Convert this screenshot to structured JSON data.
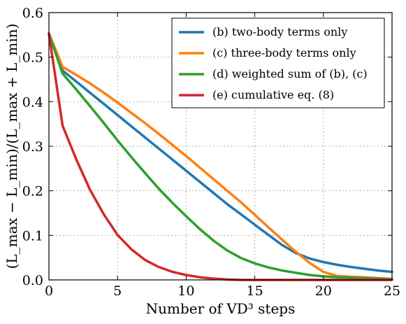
{
  "chart_data": {
    "type": "line",
    "xlabel": "Number of VD³ steps",
    "ylabel": "(L_max − L_min)/(L_max + L_min)",
    "xlim": [
      0,
      25
    ],
    "ylim": [
      0,
      0.6
    ],
    "xticks": [
      "0",
      "5",
      "10",
      "15",
      "20",
      "25"
    ],
    "yticks": [
      "0.0",
      "0.1",
      "0.2",
      "0.3",
      "0.4",
      "0.5",
      "0.6"
    ],
    "grid": true,
    "legend_position": "top-right",
    "x": [
      0,
      1,
      2,
      3,
      4,
      5,
      6,
      7,
      8,
      9,
      10,
      11,
      12,
      13,
      14,
      15,
      16,
      17,
      18,
      19,
      20,
      21,
      22,
      23,
      24,
      25
    ],
    "series": [
      {
        "name": "(b)   two-body terms only",
        "color": "#1f77b4",
        "values": [
          0.553,
          0.47,
          0.445,
          0.42,
          0.395,
          0.37,
          0.345,
          0.32,
          0.295,
          0.27,
          0.245,
          0.22,
          0.195,
          0.17,
          0.147,
          0.124,
          0.101,
          0.078,
          0.06,
          0.048,
          0.04,
          0.034,
          0.029,
          0.025,
          0.021,
          0.018
        ]
      },
      {
        "name": "(c)   three-body terms only",
        "color": "#ff7f0e",
        "values": [
          0.553,
          0.478,
          0.46,
          0.441,
          0.42,
          0.398,
          0.375,
          0.352,
          0.328,
          0.303,
          0.278,
          0.252,
          0.226,
          0.2,
          0.174,
          0.146,
          0.118,
          0.09,
          0.063,
          0.038,
          0.018,
          0.009,
          0.007,
          0.006,
          0.004,
          0.002
        ]
      },
      {
        "name": "(d)   weighted sum of (b), (c)",
        "color": "#2ca02c",
        "values": [
          0.553,
          0.463,
          0.427,
          0.39,
          0.352,
          0.313,
          0.276,
          0.24,
          0.205,
          0.173,
          0.143,
          0.114,
          0.088,
          0.066,
          0.049,
          0.037,
          0.028,
          0.021,
          0.016,
          0.011,
          0.008,
          0.006,
          0.005,
          0.004,
          0.003,
          0.002
        ]
      },
      {
        "name": "(e)   cumulative eq. (8)",
        "color": "#d62728",
        "values": [
          0.553,
          0.346,
          0.27,
          0.202,
          0.147,
          0.101,
          0.069,
          0.045,
          0.029,
          0.018,
          0.011,
          0.006,
          0.003,
          0.001,
          0.0,
          0.0,
          0.0,
          0.0,
          0.0,
          0.0,
          0.0,
          0.0,
          0.0,
          0.0,
          0.0,
          0.0
        ]
      }
    ]
  }
}
